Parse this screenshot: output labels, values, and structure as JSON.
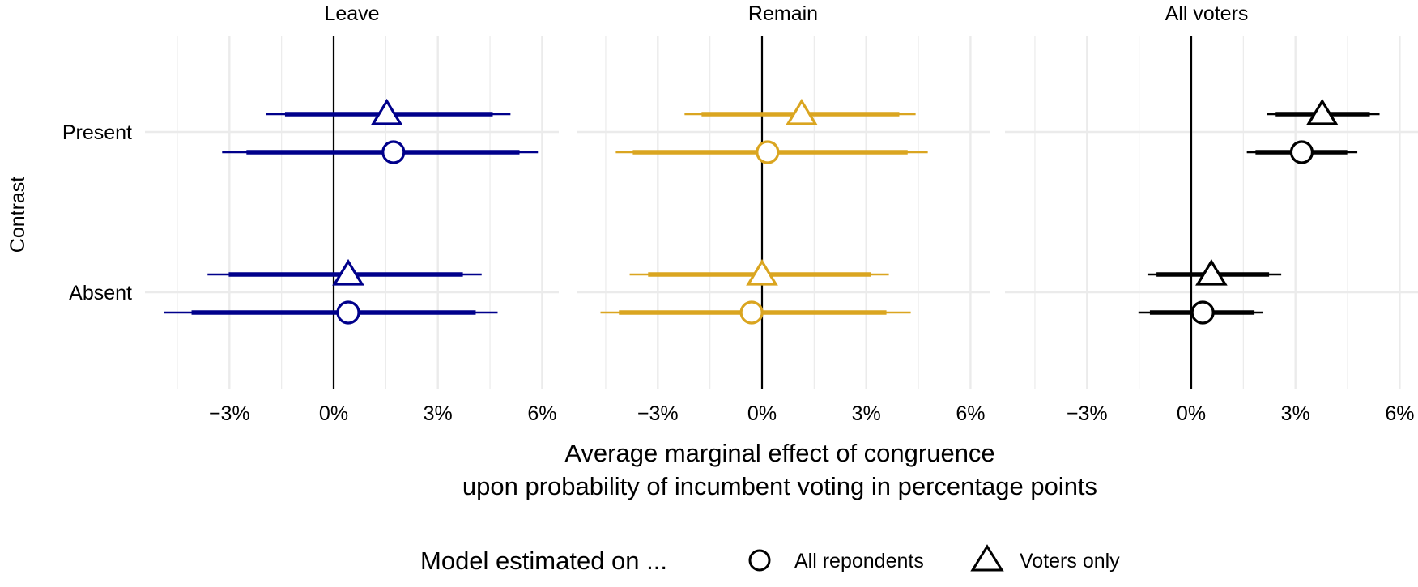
{
  "chart_data": {
    "type": "forest",
    "title": "",
    "xlabel_lines": [
      "Average marginal effect of congruence",
      "upon probability of incumbent voting in percentage points"
    ],
    "ylabel": "Contrast",
    "y_categories": [
      "Present",
      "Absent"
    ],
    "x_ticks": [
      -3,
      0,
      3,
      6
    ],
    "x_tick_labels": [
      "−3%",
      "0%",
      "3%",
      "6%"
    ],
    "x_minor_ticks": [
      -4.5,
      -1.5,
      1.5,
      4.5
    ],
    "xlim": [
      -5.5,
      6.4
    ],
    "grid": true,
    "reference_line": 0,
    "legend": {
      "position": "bottom",
      "title": "Model estimated on ...",
      "entries": [
        {
          "label": "All repondents",
          "shape": "circle"
        },
        {
          "label": "Voters only",
          "shape": "triangle"
        }
      ]
    },
    "panels": [
      {
        "title": "Leave",
        "color": "#00008B",
        "points": [
          {
            "contrast": "Present",
            "model": "Voters only",
            "estimate": 1.53,
            "ci90": [
              -1.4,
              4.58
            ],
            "ci95": [
              -1.95,
              5.09
            ]
          },
          {
            "contrast": "Present",
            "model": "All repondents",
            "estimate": 1.72,
            "ci90": [
              -2.51,
              5.35
            ],
            "ci95": [
              -3.21,
              5.88
            ]
          },
          {
            "contrast": "Absent",
            "model": "Voters only",
            "estimate": 0.42,
            "ci90": [
              -3.02,
              3.72
            ],
            "ci95": [
              -3.63,
              4.26
            ]
          },
          {
            "contrast": "Absent",
            "model": "All repondents",
            "estimate": 0.42,
            "ci90": [
              -4.09,
              4.09
            ],
            "ci95": [
              -4.88,
              4.72
            ]
          }
        ]
      },
      {
        "title": "Remain",
        "color": "#DAA520",
        "points": [
          {
            "contrast": "Present",
            "model": "Voters only",
            "estimate": 1.14,
            "ci90": [
              -1.74,
              3.95
            ],
            "ci95": [
              -2.23,
              4.42
            ]
          },
          {
            "contrast": "Present",
            "model": "All repondents",
            "estimate": 0.16,
            "ci90": [
              -3.72,
              4.19
            ],
            "ci95": [
              -4.21,
              4.77
            ]
          },
          {
            "contrast": "Absent",
            "model": "Voters only",
            "estimate": 0.0,
            "ci90": [
              -3.28,
              3.14
            ],
            "ci95": [
              -3.81,
              3.65
            ]
          },
          {
            "contrast": "Absent",
            "model": "All repondents",
            "estimate": -0.3,
            "ci90": [
              -4.12,
              3.58
            ],
            "ci95": [
              -4.65,
              4.28
            ]
          }
        ]
      },
      {
        "title": "All voters",
        "color": "#000000",
        "points": [
          {
            "contrast": "Present",
            "model": "Voters only",
            "estimate": 3.77,
            "ci90": [
              2.43,
              5.14
            ],
            "ci95": [
              2.19,
              5.42
            ]
          },
          {
            "contrast": "Present",
            "model": "All repondents",
            "estimate": 3.18,
            "ci90": [
              1.85,
              4.49
            ],
            "ci95": [
              1.6,
              4.78
            ]
          },
          {
            "contrast": "Absent",
            "model": "Voters only",
            "estimate": 0.58,
            "ci90": [
              -1.0,
              2.24
            ],
            "ci95": [
              -1.26,
              2.59
            ]
          },
          {
            "contrast": "Absent",
            "model": "All repondents",
            "estimate": 0.33,
            "ci90": [
              -1.19,
              1.82
            ],
            "ci95": [
              -1.52,
              2.07
            ]
          }
        ]
      }
    ]
  },
  "colors": {
    "grid": "#EBEBEB",
    "reference_line": "#000000",
    "text": "#000000"
  }
}
